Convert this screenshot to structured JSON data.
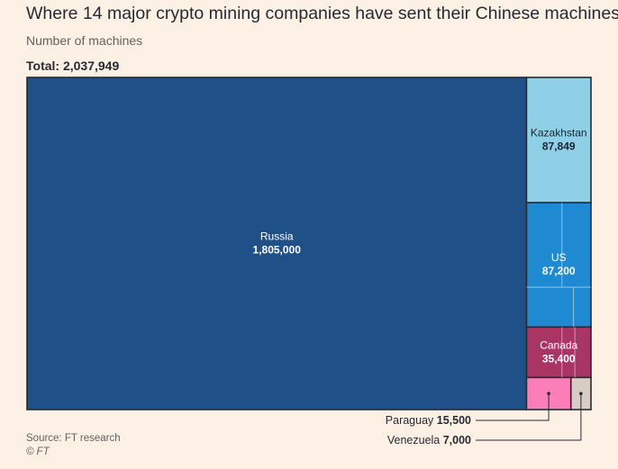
{
  "title": "Where 14 major crypto mining companies have sent their Chinese machines",
  "subtitle": "Number of machines",
  "total_label": "Total: 2,037,949",
  "source": "Source: FT research",
  "copyright": "© FT",
  "colors": {
    "background": "#fdf1e5",
    "Russia": "#205088",
    "Kazakhstan": "#8fd0e7",
    "US": "#1f8ad1",
    "Canada": "#a83563",
    "Paraguay": "#fb7eb8",
    "Venezuela": "#d8ccc4"
  },
  "chart_data": {
    "type": "treemap",
    "title": "Where 14 major crypto mining companies have sent their Chinese machines",
    "subtitle": "Number of machines",
    "total": 2037949,
    "items": [
      {
        "name": "Russia",
        "value": 1805000,
        "label": "1,805,000"
      },
      {
        "name": "Kazakhstan",
        "value": 87849,
        "label": "87,849"
      },
      {
        "name": "US",
        "value": 87200,
        "label": "87,200"
      },
      {
        "name": "Canada",
        "value": 35400,
        "label": "35,400"
      },
      {
        "name": "Paraguay",
        "value": 15500,
        "label": "15,500"
      },
      {
        "name": "Venezuela",
        "value": 7000,
        "label": "7,000"
      }
    ]
  }
}
